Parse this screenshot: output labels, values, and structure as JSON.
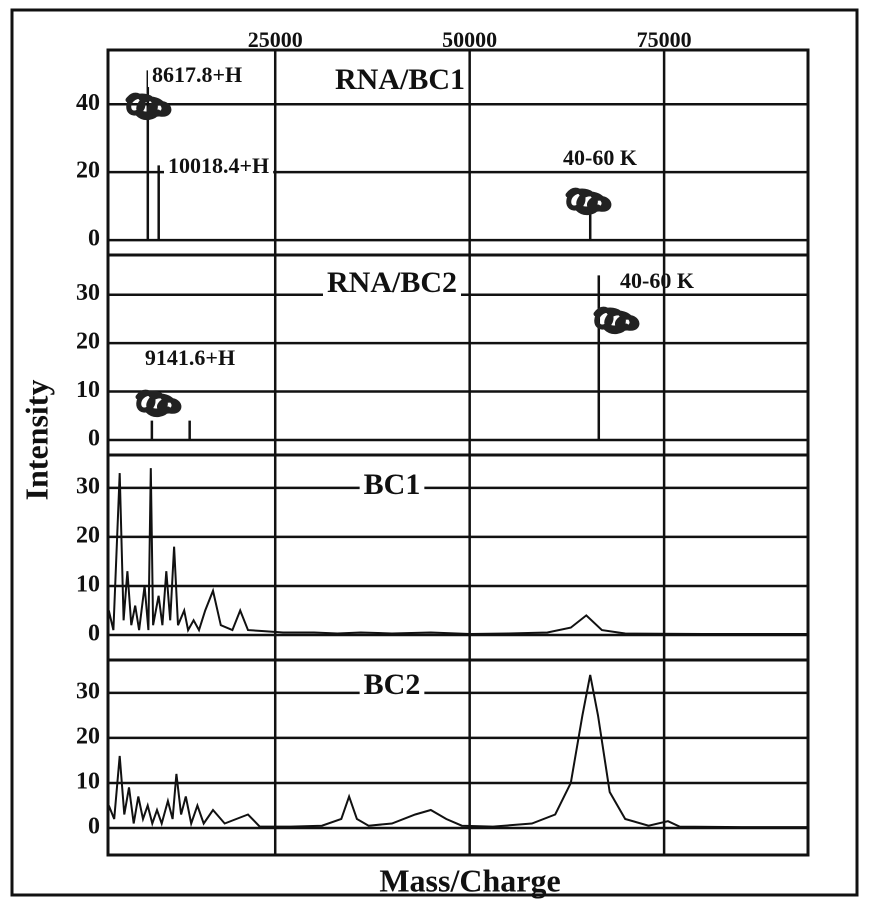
{
  "x_label": "Mass/Charge",
  "y_label": "Intensity",
  "chart_data": [
    {
      "type": "stem",
      "title": "RNA/BC1",
      "annotations": [
        "8617.8+H",
        "10018.4+H",
        "40-60 K"
      ],
      "x": [
        8617.8,
        10018.4,
        65500
      ],
      "values": [
        50,
        22,
        10
      ],
      "xlim": [
        3500,
        93500
      ],
      "xticks": [
        25000,
        50000,
        75000
      ],
      "ylim": [
        -4.4,
        56
      ],
      "yticks": [
        0,
        20,
        40
      ],
      "grid": true,
      "color": "#111111"
    },
    {
      "type": "stem",
      "title": "RNA/BC2",
      "annotations": [
        "9141.6+H",
        "40-60 K"
      ],
      "x": [
        9141.6,
        14000,
        66600
      ],
      "values": [
        4,
        4,
        34
      ],
      "xlim": [
        3500,
        93500
      ],
      "ylim": [
        -3.1,
        38.2
      ],
      "yticks": [
        0,
        10,
        20,
        30
      ],
      "grid": true,
      "color": "#111111"
    },
    {
      "type": "line",
      "title": "BC1",
      "x": [
        3600,
        4200,
        5000,
        5500,
        6000,
        6500,
        7000,
        7500,
        8200,
        8700,
        9000,
        9300,
        10000,
        10500,
        11000,
        11500,
        12000,
        12500,
        13300,
        13800,
        14500,
        15200,
        16000,
        17000,
        18000,
        19500,
        20500,
        21500,
        23500,
        26000,
        30000,
        33000,
        36000,
        40000,
        45000,
        50000,
        55000,
        60000,
        63000,
        65000,
        67000,
        70000,
        80000,
        93500
      ],
      "values": [
        5,
        1,
        33,
        3,
        13,
        2,
        6,
        1,
        10,
        1,
        34,
        2,
        8,
        2,
        13,
        3,
        18,
        2,
        5,
        1,
        3,
        1,
        5,
        9,
        2,
        1,
        5,
        1,
        0.8,
        0.5,
        0.5,
        0.3,
        0.5,
        0.3,
        0.5,
        0.2,
        0.3,
        0.5,
        1.5,
        4,
        1,
        0.3,
        0.2,
        0.2
      ],
      "xlim": [
        3500,
        93500
      ],
      "ylim": [
        -5.1,
        36.7
      ],
      "yticks": [
        0,
        10,
        20,
        30
      ],
      "grid": true,
      "color": "#111111"
    },
    {
      "type": "line",
      "title": "BC2",
      "x": [
        3600,
        4300,
        5000,
        5600,
        6200,
        6800,
        7400,
        8000,
        8600,
        9200,
        9800,
        10400,
        11200,
        11800,
        12300,
        12900,
        13500,
        14200,
        15000,
        15800,
        17000,
        18500,
        20000,
        21500,
        23000,
        27000,
        31000,
        33500,
        34500,
        35500,
        37000,
        40000,
        43000,
        45000,
        47000,
        49000,
        53000,
        58000,
        61000,
        63000,
        64500,
        65500,
        66500,
        68000,
        70000,
        73000,
        75500,
        77000,
        85000,
        93500
      ],
      "values": [
        5,
        2,
        16,
        3,
        9,
        1,
        7,
        2,
        5,
        1,
        4,
        1,
        6,
        2,
        12,
        3,
        7,
        1,
        5,
        1,
        4,
        1,
        2,
        3,
        0.3,
        0.3,
        0.5,
        2,
        7,
        2,
        0.5,
        1,
        3,
        4,
        2,
        0.5,
        0.3,
        1,
        3,
        10,
        25,
        34,
        25,
        8,
        2,
        0.5,
        1.5,
        0.3,
        0.2,
        0.2
      ],
      "xlim": [
        3500,
        93500
      ],
      "ylim": [
        -6,
        37.3
      ],
      "yticks": [
        0,
        10,
        20,
        30
      ],
      "grid": true,
      "color": "#111111"
    }
  ]
}
